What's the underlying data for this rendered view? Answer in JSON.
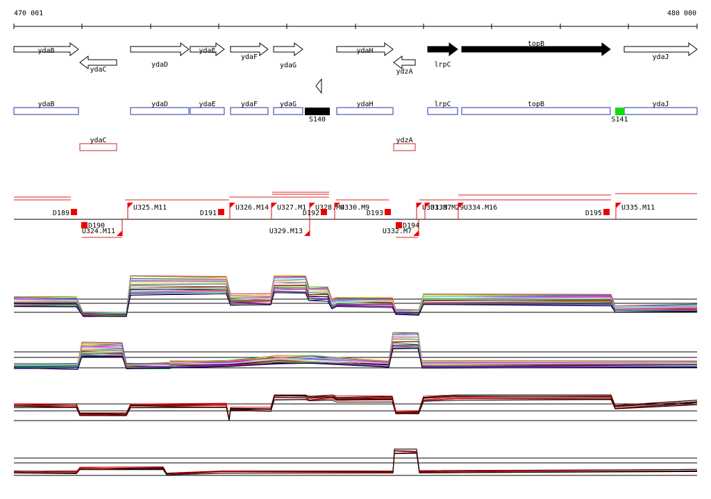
{
  "coordinates": {
    "start_label": "470 001",
    "end_label": "480 000"
  },
  "genes": [
    {
      "name": "ydaB",
      "strand": "+",
      "filled": false,
      "row": 1
    },
    {
      "name": "ydaC",
      "strand": "-",
      "filled": false,
      "row": 2
    },
    {
      "name": "ydaD",
      "strand": "+",
      "filled": false,
      "row": 1
    },
    {
      "name": "ydaE",
      "strand": "+",
      "filled": false,
      "row": 1
    },
    {
      "name": "ydaF",
      "strand": "+",
      "filled": false,
      "row": 1
    },
    {
      "name": "ydaG",
      "strand": "+",
      "filled": false,
      "row": 1
    },
    {
      "name": "ydaH",
      "strand": "+",
      "filled": false,
      "row": 1
    },
    {
      "name": "ydzA",
      "strand": "-",
      "filled": false,
      "row": 2
    },
    {
      "name": "lrpC",
      "strand": "+",
      "filled": true,
      "row": 1
    },
    {
      "name": "topB",
      "strand": "+",
      "filled": true,
      "row": 1
    },
    {
      "name": "ydaJ",
      "strand": "+",
      "filled": false,
      "row": 1
    }
  ],
  "segments": [
    {
      "name": "ydaB",
      "color": "#2233aa"
    },
    {
      "name": "ydaD",
      "color": "#2233aa"
    },
    {
      "name": "ydaE",
      "color": "#2233aa"
    },
    {
      "name": "ydaF",
      "color": "#2233aa"
    },
    {
      "name": "ydaG",
      "color": "#2233aa"
    },
    {
      "name": "ydaH",
      "color": "#2233aa"
    },
    {
      "name": "lrpC",
      "color": "#2233aa"
    },
    {
      "name": "topB",
      "color": "#2233aa"
    },
    {
      "name": "ydaJ",
      "color": "#2233aa"
    },
    {
      "name": "ydaC",
      "color": "#cc2222"
    },
    {
      "name": "ydzA",
      "color": "#cc2222"
    }
  ],
  "features": [
    {
      "name": "S140",
      "color": "#000000"
    },
    {
      "name": "S141",
      "color": "#11dd11"
    }
  ],
  "upper_markers": [
    {
      "name": "D189",
      "kind": "down"
    },
    {
      "name": "U325.M11",
      "kind": "up"
    },
    {
      "name": "D191",
      "kind": "down"
    },
    {
      "name": "U326.M14",
      "kind": "up"
    },
    {
      "name": "U327.M1",
      "kind": "up"
    },
    {
      "name": "U328.M4",
      "kind": "up"
    },
    {
      "name": "D192",
      "kind": "down"
    },
    {
      "name": "U330.M9",
      "kind": "up"
    },
    {
      "name": "D193",
      "kind": "down"
    },
    {
      "name": "U331.M7",
      "kind": "up"
    },
    {
      "name": "U333.M29",
      "kind": "up"
    },
    {
      "name": "U334.M16",
      "kind": "up"
    },
    {
      "name": "D195",
      "kind": "down"
    },
    {
      "name": "U335.M11",
      "kind": "up"
    }
  ],
  "lower_markers": [
    {
      "name": "D190",
      "kind": "down"
    },
    {
      "name": "U324.M11",
      "kind": "up"
    },
    {
      "name": "U329.M13",
      "kind": "up"
    },
    {
      "name": "D194",
      "kind": "down"
    },
    {
      "name": "U332.M7",
      "kind": "up"
    }
  ],
  "tracks": [
    {
      "id": "track-1",
      "profile": [
        [
          20,
          0.55
        ],
        [
          110,
          0.55
        ],
        [
          120,
          0.85
        ],
        [
          182,
          0.85
        ],
        [
          188,
          0.15
        ],
        [
          326,
          0.15
        ],
        [
          332,
          0.5
        ],
        [
          390,
          0.5
        ],
        [
          395,
          0.1
        ],
        [
          440,
          0.1
        ],
        [
          445,
          0.35
        ],
        [
          472,
          0.35
        ],
        [
          478,
          0.6
        ],
        [
          485,
          0.55
        ],
        [
          565,
          0.55
        ],
        [
          570,
          0.8
        ],
        [
          603,
          0.8
        ],
        [
          610,
          0.5
        ],
        [
          880,
          0.5
        ],
        [
          886,
          0.7
        ],
        [
          1004,
          0.7
        ]
      ]
    },
    {
      "id": "track-2",
      "profile": [
        [
          20,
          0.75
        ],
        [
          112,
          0.75
        ],
        [
          118,
          0.35
        ],
        [
          176,
          0.35
        ],
        [
          182,
          0.75
        ],
        [
          245,
          0.75
        ],
        [
          245,
          0.7
        ],
        [
          330,
          0.7
        ],
        [
          400,
          0.6
        ],
        [
          450,
          0.6
        ],
        [
          560,
          0.7
        ],
        [
          566,
          0.1
        ],
        [
          602,
          0.1
        ],
        [
          608,
          0.7
        ],
        [
          1004,
          0.7
        ]
      ]
    },
    {
      "id": "track-3",
      "profile": [
        [
          20,
          0.3
        ],
        [
          110,
          0.3
        ],
        [
          115,
          0.55
        ],
        [
          182,
          0.55
        ],
        [
          188,
          0.3
        ],
        [
          326,
          0.3
        ],
        [
          330,
          0.7
        ],
        [
          332,
          0.4
        ],
        [
          390,
          0.4
        ],
        [
          395,
          0.05
        ],
        [
          440,
          0.05
        ],
        [
          446,
          0.1
        ],
        [
          478,
          0.05
        ],
        [
          485,
          0.1
        ],
        [
          565,
          0.1
        ],
        [
          570,
          0.5
        ],
        [
          603,
          0.5
        ],
        [
          610,
          0.1
        ],
        [
          660,
          0.05
        ],
        [
          880,
          0.05
        ],
        [
          886,
          0.35
        ],
        [
          1004,
          0.2
        ]
      ]
    },
    {
      "id": "track-4",
      "profile": [
        [
          20,
          0.65
        ],
        [
          110,
          0.65
        ],
        [
          115,
          0.55
        ],
        [
          235,
          0.55
        ],
        [
          240,
          0.7
        ],
        [
          320,
          0.65
        ],
        [
          566,
          0.65
        ],
        [
          568,
          0.05
        ],
        [
          600,
          0.05
        ],
        [
          604,
          0.65
        ],
        [
          1004,
          0.6
        ]
      ]
    }
  ],
  "colors": {
    "axis": "#000000",
    "segment_plus": "#2233aa",
    "segment_minus": "#cc2222",
    "marker": "#ff0000",
    "feature_black": "#000000",
    "feature_green": "#11dd11"
  }
}
